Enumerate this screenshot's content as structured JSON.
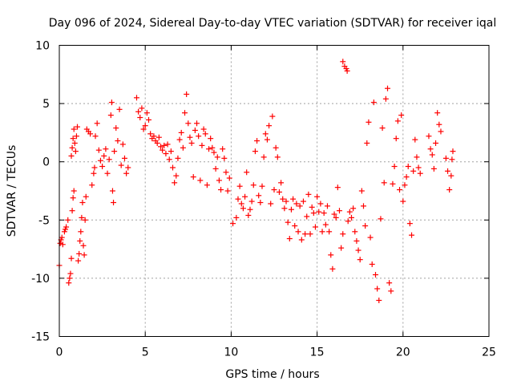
{
  "chart_data": {
    "type": "scatter",
    "title": "Day 096 of 2024, Sidereal Day-to-day VTEC variation (SDTVAR) for receiver iqal",
    "xlabel": "GPS time / hours",
    "ylabel": "SDTVAR / TECUs",
    "xlim": [
      0,
      25
    ],
    "ylim": [
      -15,
      10
    ],
    "xticks": [
      0,
      5,
      10,
      15,
      20,
      25
    ],
    "yticks": [
      -15,
      -10,
      -5,
      0,
      5,
      10
    ],
    "x_tick_labels": [
      "0",
      "5",
      "10",
      "15",
      "20",
      "25"
    ],
    "y_tick_labels": [
      "-15",
      "-10",
      "-5",
      "0",
      "5",
      "10"
    ],
    "grid": true,
    "marker": "+",
    "color": "#ff0000",
    "series": [
      {
        "name": "iqal",
        "points": [
          [
            0.0,
            -8.9
          ],
          [
            0.05,
            -7.0
          ],
          [
            0.1,
            -6.7
          ],
          [
            0.15,
            -6.5
          ],
          [
            0.2,
            -7.1
          ],
          [
            0.3,
            -6.0
          ],
          [
            0.35,
            -5.8
          ],
          [
            0.4,
            -5.6
          ],
          [
            0.5,
            -5.0
          ],
          [
            0.55,
            -10.4
          ],
          [
            0.6,
            -10.0
          ],
          [
            0.65,
            -9.6
          ],
          [
            0.7,
            -8.3
          ],
          [
            0.75,
            -4.2
          ],
          [
            0.8,
            -3.1
          ],
          [
            0.85,
            -2.5
          ],
          [
            0.7,
            0.5
          ],
          [
            0.75,
            1.2
          ],
          [
            0.8,
            2.0
          ],
          [
            0.85,
            2.8
          ],
          [
            0.9,
            1.6
          ],
          [
            0.95,
            0.9
          ],
          [
            1.0,
            2.2
          ],
          [
            1.05,
            3.0
          ],
          [
            1.1,
            -8.5
          ],
          [
            1.15,
            -7.9
          ],
          [
            1.2,
            -6.8
          ],
          [
            1.25,
            -6.0
          ],
          [
            1.3,
            -4.8
          ],
          [
            1.35,
            -3.5
          ],
          [
            1.4,
            -7.2
          ],
          [
            1.45,
            -8.0
          ],
          [
            1.5,
            -5.0
          ],
          [
            1.55,
            -3.0
          ],
          [
            1.6,
            2.8
          ],
          [
            1.7,
            2.6
          ],
          [
            1.8,
            2.4
          ],
          [
            1.9,
            -2.0
          ],
          [
            2.0,
            -1.0
          ],
          [
            2.05,
            -0.5
          ],
          [
            2.1,
            2.2
          ],
          [
            2.2,
            3.3
          ],
          [
            2.3,
            1.0
          ],
          [
            2.4,
            0.1
          ],
          [
            2.5,
            -0.4
          ],
          [
            2.6,
            0.5
          ],
          [
            2.7,
            1.1
          ],
          [
            2.8,
            -1.0
          ],
          [
            2.9,
            0.2
          ],
          [
            3.0,
            4.0
          ],
          [
            3.05,
            5.1
          ],
          [
            3.1,
            -2.5
          ],
          [
            3.15,
            -3.5
          ],
          [
            3.2,
            0.9
          ],
          [
            3.3,
            2.9
          ],
          [
            3.4,
            1.8
          ],
          [
            3.5,
            4.5
          ],
          [
            3.6,
            -0.3
          ],
          [
            3.7,
            1.5
          ],
          [
            3.8,
            0.3
          ],
          [
            3.9,
            -1.0
          ],
          [
            4.0,
            -0.5
          ],
          [
            4.5,
            5.5
          ],
          [
            4.6,
            4.3
          ],
          [
            4.7,
            3.8
          ],
          [
            4.8,
            4.6
          ],
          [
            4.9,
            2.8
          ],
          [
            5.0,
            3.1
          ],
          [
            5.1,
            4.2
          ],
          [
            5.2,
            3.6
          ],
          [
            5.3,
            2.4
          ],
          [
            5.4,
            2.0
          ],
          [
            5.5,
            2.2
          ],
          [
            5.6,
            1.8
          ],
          [
            5.7,
            1.6
          ],
          [
            5.8,
            2.1
          ],
          [
            5.9,
            1.3
          ],
          [
            6.0,
            1.0
          ],
          [
            6.1,
            1.4
          ],
          [
            6.2,
            0.7
          ],
          [
            6.3,
            1.5
          ],
          [
            6.4,
            0.2
          ],
          [
            6.5,
            0.9
          ],
          [
            6.6,
            -0.5
          ],
          [
            6.7,
            -1.8
          ],
          [
            6.8,
            -1.2
          ],
          [
            6.9,
            0.3
          ],
          [
            7.0,
            1.9
          ],
          [
            7.1,
            2.5
          ],
          [
            7.2,
            1.2
          ],
          [
            7.3,
            4.2
          ],
          [
            7.4,
            5.8
          ],
          [
            7.5,
            3.3
          ],
          [
            7.6,
            2.1
          ],
          [
            7.7,
            1.6
          ],
          [
            7.8,
            -1.3
          ],
          [
            7.9,
            2.7
          ],
          [
            8.0,
            3.3
          ],
          [
            8.1,
            2.2
          ],
          [
            8.2,
            -1.6
          ],
          [
            8.3,
            1.4
          ],
          [
            8.4,
            2.8
          ],
          [
            8.5,
            2.4
          ],
          [
            8.6,
            -2.0
          ],
          [
            8.7,
            1.1
          ],
          [
            8.8,
            2.0
          ],
          [
            8.9,
            1.2
          ],
          [
            9.0,
            0.8
          ],
          [
            9.1,
            -0.6
          ],
          [
            9.2,
            0.4
          ],
          [
            9.3,
            -1.6
          ],
          [
            9.4,
            -2.4
          ],
          [
            9.5,
            1.1
          ],
          [
            9.6,
            0.3
          ],
          [
            9.7,
            -0.9
          ],
          [
            9.8,
            -2.5
          ],
          [
            9.9,
            -1.4
          ],
          [
            10.1,
            -5.3
          ],
          [
            10.3,
            -4.8
          ],
          [
            10.4,
            -3.2
          ],
          [
            10.5,
            -2.1
          ],
          [
            10.6,
            -3.6
          ],
          [
            10.7,
            -4.0
          ],
          [
            10.8,
            -3.0
          ],
          [
            10.9,
            -0.9
          ],
          [
            11.0,
            -4.6
          ],
          [
            11.1,
            -4.1
          ],
          [
            11.2,
            -3.4
          ],
          [
            11.3,
            -2.0
          ],
          [
            11.4,
            0.9
          ],
          [
            11.5,
            1.8
          ],
          [
            11.6,
            -2.9
          ],
          [
            11.7,
            -3.5
          ],
          [
            11.8,
            -2.1
          ],
          [
            11.9,
            0.4
          ],
          [
            12.0,
            2.4
          ],
          [
            12.1,
            1.9
          ],
          [
            12.2,
            3.1
          ],
          [
            12.3,
            -3.6
          ],
          [
            12.4,
            3.9
          ],
          [
            12.5,
            -2.4
          ],
          [
            12.6,
            1.2
          ],
          [
            12.7,
            0.4
          ],
          [
            12.8,
            -2.6
          ],
          [
            12.9,
            -1.8
          ],
          [
            13.0,
            -3.2
          ],
          [
            13.1,
            -4.0
          ],
          [
            13.2,
            -3.4
          ],
          [
            13.3,
            -5.2
          ],
          [
            13.4,
            -6.6
          ],
          [
            13.5,
            -4.1
          ],
          [
            13.6,
            -3.2
          ],
          [
            13.7,
            -5.5
          ],
          [
            13.8,
            -3.6
          ],
          [
            13.9,
            -6.0
          ],
          [
            14.0,
            -3.8
          ],
          [
            14.1,
            -6.7
          ],
          [
            14.2,
            -3.4
          ],
          [
            14.3,
            -6.2
          ],
          [
            14.4,
            -4.7
          ],
          [
            14.5,
            -2.8
          ],
          [
            14.6,
            -6.2
          ],
          [
            14.7,
            -3.9
          ],
          [
            14.8,
            -4.4
          ],
          [
            14.9,
            -5.6
          ],
          [
            15.0,
            -3.0
          ],
          [
            15.1,
            -4.3
          ],
          [
            15.2,
            -3.6
          ],
          [
            15.3,
            -6.0
          ],
          [
            15.4,
            -4.4
          ],
          [
            15.5,
            -5.4
          ],
          [
            15.6,
            -3.8
          ],
          [
            15.7,
            -6.0
          ],
          [
            15.8,
            -8.0
          ],
          [
            15.9,
            -9.2
          ],
          [
            16.0,
            -4.5
          ],
          [
            16.1,
            -4.8
          ],
          [
            16.2,
            -2.2
          ],
          [
            16.3,
            -4.2
          ],
          [
            16.4,
            -7.4
          ],
          [
            16.5,
            -6.2
          ],
          [
            16.5,
            8.6
          ],
          [
            16.6,
            8.2
          ],
          [
            16.7,
            8.0
          ],
          [
            16.75,
            7.8
          ],
          [
            16.8,
            -5.1
          ],
          [
            16.9,
            -4.3
          ],
          [
            17.0,
            -4.8
          ],
          [
            17.1,
            -4.0
          ],
          [
            17.2,
            -6.0
          ],
          [
            17.3,
            -6.8
          ],
          [
            17.4,
            -7.6
          ],
          [
            17.5,
            -8.4
          ],
          [
            17.6,
            -2.5
          ],
          [
            17.7,
            -3.8
          ],
          [
            17.8,
            -5.5
          ],
          [
            17.9,
            1.6
          ],
          [
            18.0,
            3.4
          ],
          [
            18.1,
            -6.5
          ],
          [
            18.2,
            -8.8
          ],
          [
            18.3,
            5.1
          ],
          [
            18.4,
            -9.7
          ],
          [
            18.5,
            -10.9
          ],
          [
            18.6,
            -11.9
          ],
          [
            18.7,
            -4.9
          ],
          [
            18.8,
            2.9
          ],
          [
            18.9,
            -1.8
          ],
          [
            19.0,
            5.4
          ],
          [
            19.1,
            6.3
          ],
          [
            19.2,
            -10.4
          ],
          [
            19.3,
            -11.1
          ],
          [
            19.4,
            -1.9
          ],
          [
            19.5,
            -0.4
          ],
          [
            19.6,
            2.0
          ],
          [
            19.7,
            3.5
          ],
          [
            19.8,
            -2.4
          ],
          [
            19.9,
            4.0
          ],
          [
            20.0,
            -3.4
          ],
          [
            20.1,
            -2.0
          ],
          [
            20.2,
            -1.3
          ],
          [
            20.3,
            -0.4
          ],
          [
            20.4,
            -5.3
          ],
          [
            20.5,
            -6.3
          ],
          [
            20.6,
            -0.8
          ],
          [
            20.7,
            1.9
          ],
          [
            20.8,
            0.4
          ],
          [
            20.9,
            -0.5
          ],
          [
            21.0,
            -1.0
          ],
          [
            21.5,
            2.2
          ],
          [
            21.6,
            1.1
          ],
          [
            21.7,
            0.6
          ],
          [
            21.8,
            -0.6
          ],
          [
            21.9,
            1.6
          ],
          [
            22.0,
            4.2
          ],
          [
            22.1,
            3.2
          ],
          [
            22.2,
            2.6
          ],
          [
            22.5,
            0.3
          ],
          [
            22.6,
            -0.8
          ],
          [
            22.7,
            -2.4
          ],
          [
            22.8,
            -1.2
          ],
          [
            22.85,
            0.2
          ],
          [
            22.9,
            0.9
          ]
        ]
      }
    ]
  }
}
